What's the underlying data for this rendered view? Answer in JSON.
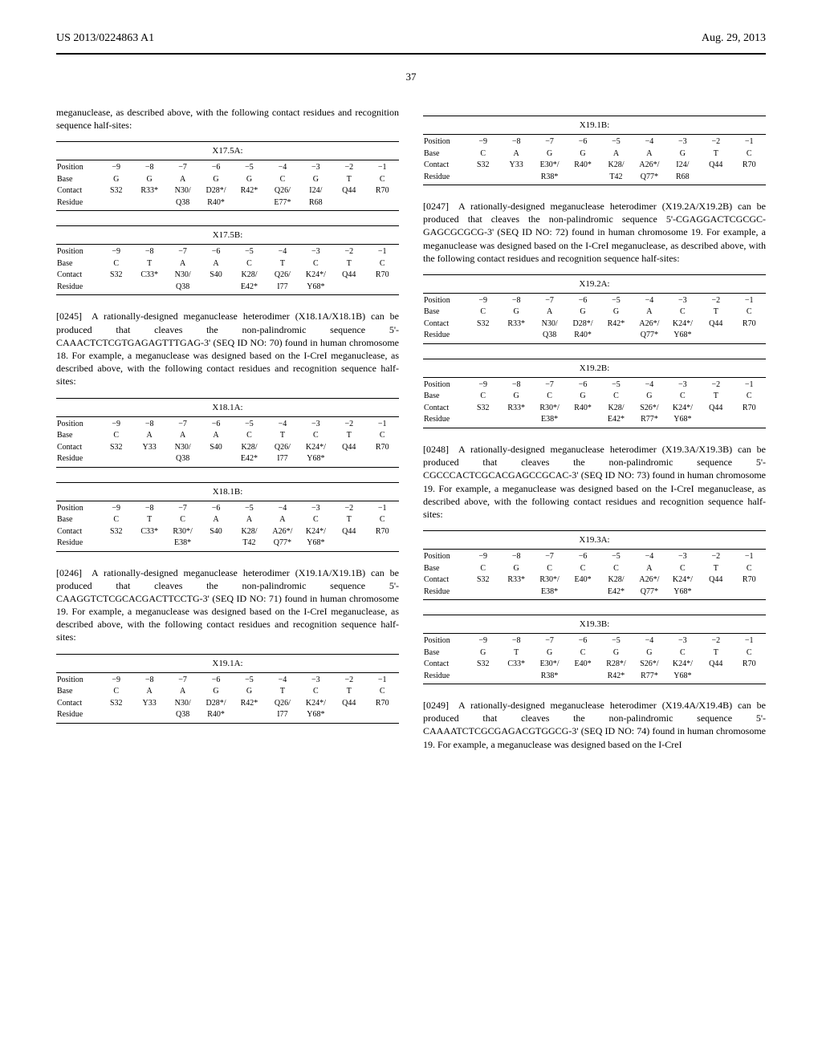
{
  "header": {
    "left": "US 2013/0224863 A1",
    "right": "Aug. 29, 2013"
  },
  "page_number": "37",
  "left_col": {
    "intro": "meganuclease, as described above, with the following contact residues and recognition sequence half-sites:",
    "p0245": "[0245] A rationally-designed meganuclease heterodimer (X18.1A/X18.1B) can be produced that cleaves the non-palindromic sequence 5'-CAAACTCTCGTGAGAGTTTGAG-3' (SEQ ID NO: 70) found in human chromosome 18. For example, a meganuclease was designed based on the I-CreI meganuclease, as described above, with the following contact residues and recognition sequence half-sites:",
    "p0246": "[0246] A rationally-designed meganuclease heterodimer (X19.1A/X19.1B) can be produced that cleaves the non-palindromic sequence 5'-CAAGGTCTCGCACGACTTCCTG-3' (SEQ ID NO: 71) found in human chromosome 19. For example, a meganuclease was designed based on the I-CreI meganuclease, as described above, with the following contact residues and recognition sequence half-sites:"
  },
  "right_col": {
    "p0247": "[0247] A rationally-designed meganuclease heterodimer (X19.2A/X19.2B) can be produced that cleaves the non-palindromic sequence 5'-CGAGGACTCGCGC-GAGCGCGCG-3' (SEQ ID NO: 72) found in human chromosome 19. For example, a meganuclease was designed based on the I-CreI meganuclease, as described above, with the following contact residues and recognition sequence half-sites:",
    "p0248": "[0248] A rationally-designed meganuclease heterodimer (X19.3A/X19.3B) can be produced that cleaves the non-palindromic sequence 5'-CGCCCACTCGCACGAGCCGCAC-3' (SEQ ID NO: 73) found in human chromosome 19. For example, a meganuclease was designed based on the I-CreI meganuclease, as described above, with the following contact residues and recognition sequence half-sites:",
    "p0249": "[0249] A rationally-designed meganuclease heterodimer (X19.4A/X19.4B) can be produced that cleaves the non-palindromic sequence 5'-CAAAATCTCGCGAGACGTGGCG-3' (SEQ ID NO: 74) found in human chromosome 19. For example, a meganuclease was designed based on the I-CreI"
  },
  "tables": {
    "row_labels": [
      "Position",
      "Base",
      "Contact",
      "Residue"
    ],
    "positions": [
      "−9",
      "−8",
      "−7",
      "−6",
      "−5",
      "−4",
      "−3",
      "−2",
      "−1"
    ],
    "X17_5A": {
      "title": "X17.5A:",
      "base": [
        "G",
        "G",
        "A",
        "G",
        "G",
        "C",
        "G",
        "T",
        "C"
      ],
      "contact": [
        "S32",
        "R33*",
        "N30/",
        "D28*/",
        "R42*",
        "Q26/",
        "I24/",
        "Q44",
        "R70"
      ],
      "residue": [
        "",
        "",
        "Q38",
        "R40*",
        "",
        "E77*",
        "R68",
        "",
        ""
      ]
    },
    "X17_5B": {
      "title": "X17.5B:",
      "base": [
        "C",
        "T",
        "A",
        "A",
        "C",
        "T",
        "C",
        "T",
        "C"
      ],
      "contact": [
        "S32",
        "C33*",
        "N30/",
        "S40",
        "K28/",
        "Q26/",
        "K24*/",
        "Q44",
        "R70"
      ],
      "residue": [
        "",
        "",
        "Q38",
        "",
        "E42*",
        "I77",
        "Y68*",
        "",
        ""
      ]
    },
    "X18_1A": {
      "title": "X18.1A:",
      "base": [
        "C",
        "A",
        "A",
        "A",
        "C",
        "T",
        "C",
        "T",
        "C"
      ],
      "contact": [
        "S32",
        "Y33",
        "N30/",
        "S40",
        "K28/",
        "Q26/",
        "K24*/",
        "Q44",
        "R70"
      ],
      "residue": [
        "",
        "",
        "Q38",
        "",
        "E42*",
        "I77",
        "Y68*",
        "",
        ""
      ]
    },
    "X18_1B": {
      "title": "X18.1B:",
      "base": [
        "C",
        "T",
        "C",
        "A",
        "A",
        "A",
        "C",
        "T",
        "C"
      ],
      "contact": [
        "S32",
        "C33*",
        "R30*/",
        "S40",
        "K28/",
        "A26*/",
        "K24*/",
        "Q44",
        "R70"
      ],
      "residue": [
        "",
        "",
        "E38*",
        "",
        "T42",
        "Q77*",
        "Y68*",
        "",
        ""
      ]
    },
    "X19_1A": {
      "title": "X19.1A:",
      "base": [
        "C",
        "A",
        "A",
        "G",
        "G",
        "T",
        "C",
        "T",
        "C"
      ],
      "contact": [
        "S32",
        "Y33",
        "N30/",
        "D28*/",
        "R42*",
        "Q26/",
        "K24*/",
        "Q44",
        "R70"
      ],
      "residue": [
        "",
        "",
        "Q38",
        "R40*",
        "",
        "I77",
        "Y68*",
        "",
        ""
      ]
    },
    "X19_1B": {
      "title": "X19.1B:",
      "base": [
        "C",
        "A",
        "G",
        "G",
        "A",
        "A",
        "G",
        "T",
        "C"
      ],
      "contact": [
        "S32",
        "Y33",
        "E30*/",
        "R40*",
        "K28/",
        "A26*/",
        "I24/",
        "Q44",
        "R70"
      ],
      "residue": [
        "",
        "",
        "R38*",
        "",
        "T42",
        "Q77*",
        "R68",
        "",
        ""
      ]
    },
    "X19_2A": {
      "title": "X19.2A:",
      "base": [
        "C",
        "G",
        "A",
        "G",
        "G",
        "A",
        "C",
        "T",
        "C"
      ],
      "contact": [
        "S32",
        "R33*",
        "N30/",
        "D28*/",
        "R42*",
        "A26*/",
        "K24*/",
        "Q44",
        "R70"
      ],
      "residue": [
        "",
        "",
        "Q38",
        "R40*",
        "",
        "Q77*",
        "Y68*",
        "",
        ""
      ]
    },
    "X19_2B": {
      "title": "X19.2B:",
      "base": [
        "C",
        "G",
        "C",
        "G",
        "C",
        "G",
        "C",
        "T",
        "C"
      ],
      "contact": [
        "S32",
        "R33*",
        "R30*/",
        "R40*",
        "K28/",
        "S26*/",
        "K24*/",
        "Q44",
        "R70"
      ],
      "residue": [
        "",
        "",
        "E38*",
        "",
        "E42*",
        "R77*",
        "Y68*",
        "",
        ""
      ]
    },
    "X19_3A": {
      "title": "X19.3A:",
      "base": [
        "C",
        "G",
        "C",
        "C",
        "C",
        "A",
        "C",
        "T",
        "C"
      ],
      "contact": [
        "S32",
        "R33*",
        "R30*/",
        "E40*",
        "K28/",
        "A26*/",
        "K24*/",
        "Q44",
        "R70"
      ],
      "residue": [
        "",
        "",
        "E38*",
        "",
        "E42*",
        "Q77*",
        "Y68*",
        "",
        ""
      ]
    },
    "X19_3B": {
      "title": "X19.3B:",
      "base": [
        "G",
        "T",
        "G",
        "C",
        "G",
        "G",
        "C",
        "T",
        "C"
      ],
      "contact": [
        "S32",
        "C33*",
        "E30*/",
        "E40*",
        "R28*/",
        "S26*/",
        "K24*/",
        "Q44",
        "R70"
      ],
      "residue": [
        "",
        "",
        "R38*",
        "",
        "R42*",
        "R77*",
        "Y68*",
        "",
        ""
      ]
    }
  }
}
